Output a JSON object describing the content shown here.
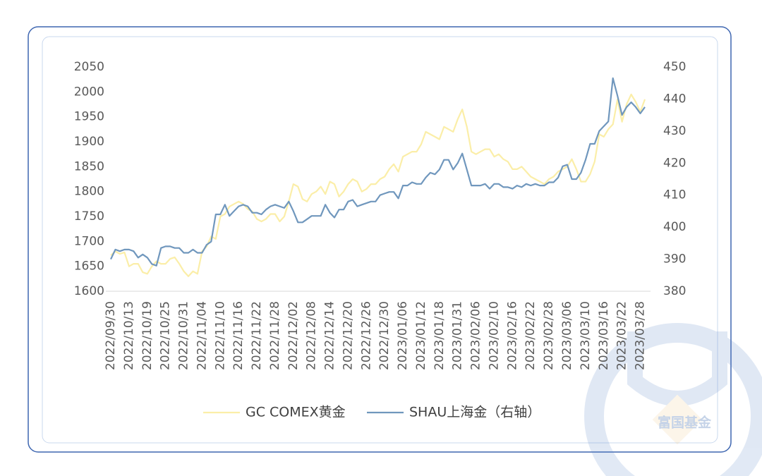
{
  "chart_data": {
    "type": "line",
    "categories": [
      "2022/09/30",
      null,
      null,
      null,
      "2022/10/13",
      null,
      null,
      null,
      "2022/10/19",
      null,
      null,
      null,
      "2022/10/25",
      null,
      null,
      null,
      "2022/10/31",
      null,
      null,
      null,
      "2022/11/04",
      null,
      null,
      null,
      "2022/11/10",
      null,
      null,
      null,
      "2022/11/16",
      null,
      null,
      null,
      "2022/11/22",
      null,
      null,
      null,
      "2022/11/28",
      null,
      null,
      null,
      "2022/12/02",
      null,
      null,
      null,
      "2022/12/08",
      null,
      null,
      null,
      "2022/12/14",
      null,
      null,
      null,
      "2022/12/20",
      null,
      null,
      null,
      "2022/12/26",
      null,
      null,
      null,
      "2022/12/30",
      null,
      null,
      null,
      "2023/01/06",
      null,
      null,
      null,
      "2023/01/12",
      null,
      null,
      null,
      "2023/01/18",
      null,
      null,
      null,
      "2023/01/31",
      null,
      null,
      null,
      "2023/02/06",
      null,
      null,
      null,
      "2023/02/10",
      null,
      null,
      null,
      "2023/02/16",
      null,
      null,
      null,
      "2023/02/22",
      null,
      null,
      null,
      "2023/02/28",
      null,
      null,
      null,
      "2023/03/06",
      null,
      null,
      null,
      "2023/03/10",
      null,
      null,
      null,
      "2023/03/16",
      null,
      null,
      null,
      "2023/03/22",
      null,
      null,
      null,
      "2023/03/28",
      null
    ],
    "series": [
      {
        "name": "GC COMEX黄金",
        "color": "#fbeea8",
        "axis": "y",
        "values": [
          1672,
          1680,
          1675,
          1678,
          1650,
          1655,
          1655,
          1638,
          1635,
          1650,
          1660,
          1655,
          1655,
          1665,
          1668,
          1655,
          1640,
          1630,
          1640,
          1635,
          1680,
          1690,
          1710,
          1705,
          1750,
          1755,
          1770,
          1775,
          1780,
          1775,
          1765,
          1760,
          1745,
          1740,
          1745,
          1755,
          1755,
          1740,
          1750,
          1780,
          1815,
          1810,
          1785,
          1780,
          1795,
          1800,
          1810,
          1795,
          1820,
          1815,
          1790,
          1800,
          1815,
          1825,
          1820,
          1800,
          1805,
          1815,
          1815,
          1825,
          1830,
          1845,
          1855,
          1840,
          1870,
          1875,
          1880,
          1880,
          1895,
          1920,
          1915,
          1910,
          1905,
          1930,
          1925,
          1920,
          1945,
          1965,
          1930,
          1880,
          1875,
          1880,
          1885,
          1885,
          1870,
          1875,
          1865,
          1860,
          1845,
          1845,
          1850,
          1840,
          1830,
          1825,
          1820,
          1815,
          1825,
          1830,
          1840,
          1845,
          1850,
          1865,
          1845,
          1820,
          1820,
          1835,
          1860,
          1915,
          1910,
          1925,
          1935,
          1985,
          1940,
          1975,
          1995,
          1980,
          1960,
          1985
        ]
      },
      {
        "name": "SHAU上海金（右轴）",
        "color": "#7097bd",
        "axis": "y2",
        "values": [
          390,
          393,
          392.5,
          393,
          393,
          392.5,
          390.5,
          391.5,
          390.5,
          388.5,
          388,
          393.5,
          394,
          394,
          393.5,
          393.5,
          392,
          392,
          393,
          392,
          392,
          394.5,
          395.5,
          404,
          404,
          407,
          403.5,
          405,
          406.5,
          407,
          406.5,
          404.5,
          404.5,
          404,
          405.5,
          406.5,
          407,
          406.5,
          406,
          408,
          405,
          401.5,
          401.5,
          402.5,
          403.5,
          403.5,
          403.5,
          407,
          404.5,
          403,
          405.5,
          405.5,
          408,
          408.5,
          406.5,
          407,
          407.5,
          408,
          408,
          410,
          410.5,
          411,
          411,
          409,
          413,
          413,
          414,
          413.5,
          413.5,
          415.5,
          417,
          416.5,
          418,
          421,
          421,
          418,
          420,
          423,
          418,
          413,
          413,
          413,
          413.5,
          412,
          413.5,
          413.5,
          412.5,
          412.5,
          412,
          413,
          412.5,
          413.5,
          413,
          413.5,
          413,
          413,
          414,
          414,
          415.5,
          419,
          419.5,
          415,
          415,
          417,
          421,
          426,
          426,
          430,
          431.5,
          433,
          446.5,
          441,
          435,
          437.5,
          439,
          437.5,
          435.5,
          437.5
        ]
      }
    ],
    "ylim": [
      1600,
      2050
    ],
    "yticks": [
      1600,
      1650,
      1700,
      1750,
      1800,
      1850,
      1900,
      1950,
      2000,
      2050
    ],
    "y2lim": [
      380,
      450
    ],
    "y2ticks": [
      380,
      390,
      400,
      410,
      420,
      430,
      440,
      450
    ],
    "legend": "bottom",
    "watermark": "富国基金"
  }
}
